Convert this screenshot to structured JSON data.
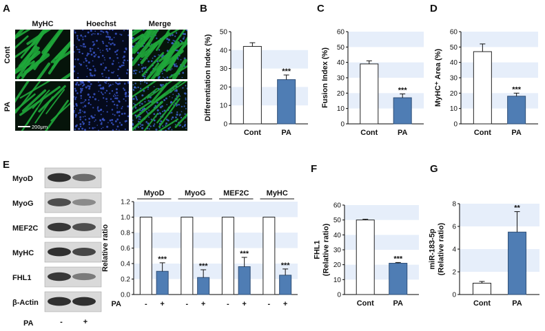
{
  "panel_letters": [
    "A",
    "B",
    "C",
    "D",
    "E",
    "F",
    "G"
  ],
  "micrographs": {
    "columns": [
      "MyHC",
      "Hoechst",
      "Merge"
    ],
    "rows": [
      "Cont",
      "PA"
    ],
    "scale_bar": "200μm",
    "tile_colors": {
      "myhc": "#1fa83a",
      "hoechst": "#1a2a6e",
      "background": "#06140a"
    }
  },
  "western_blot": {
    "bands": [
      "MyoD",
      "MyoG",
      "MEF2C",
      "MyHC",
      "FHL1",
      "β-Actin"
    ],
    "lanes": [
      "-",
      "+"
    ],
    "treatment_label": "PA"
  },
  "colors": {
    "control_bar": "#ffffff",
    "pa_bar": "#4f7db4",
    "band_shade": "#e6eefa"
  },
  "chart_data": [
    {
      "id": "B",
      "type": "bar",
      "title": "",
      "xlabel": "",
      "ylabel": "Differentiation Index (%)",
      "categories": [
        "Cont",
        "PA"
      ],
      "values": [
        42,
        24
      ],
      "errors": [
        2,
        2.5
      ],
      "ylim": [
        0,
        50
      ],
      "yticks": [
        0,
        10,
        20,
        30,
        40,
        50
      ],
      "annotations": [
        "",
        "***"
      ],
      "grid": "alternating bands"
    },
    {
      "id": "C",
      "type": "bar",
      "title": "",
      "xlabel": "",
      "ylabel": "Fusion Index (%)",
      "categories": [
        "Cont",
        "PA"
      ],
      "values": [
        39,
        17
      ],
      "errors": [
        2,
        2.5
      ],
      "ylim": [
        0,
        60
      ],
      "yticks": [
        0,
        10,
        20,
        30,
        40,
        50,
        60
      ],
      "annotations": [
        "",
        "***"
      ],
      "grid": "alternating bands"
    },
    {
      "id": "D",
      "type": "bar",
      "title": "",
      "xlabel": "",
      "ylabel": "MyHC⁺ Area (%)",
      "categories": [
        "Cont",
        "PA"
      ],
      "values": [
        47,
        18
      ],
      "errors": [
        5,
        2
      ],
      "ylim": [
        0,
        60
      ],
      "yticks": [
        0,
        10,
        20,
        30,
        40,
        50,
        60
      ],
      "annotations": [
        "",
        "***"
      ],
      "grid": "alternating bands"
    },
    {
      "id": "E",
      "type": "bar",
      "title": "",
      "xlabel": "PA",
      "ylabel": "Relative ratio",
      "groups": [
        "MyoD",
        "MyoG",
        "MEF2C",
        "MyHC"
      ],
      "categories": [
        "-",
        "+"
      ],
      "values": [
        [
          1.0,
          0.3
        ],
        [
          1.0,
          0.22
        ],
        [
          1.0,
          0.36
        ],
        [
          1.0,
          0.25
        ]
      ],
      "errors": [
        [
          0,
          0.11
        ],
        [
          0,
          0.1
        ],
        [
          0,
          0.12
        ],
        [
          0,
          0.08
        ]
      ],
      "ylim": [
        0,
        1.2
      ],
      "yticks": [
        "0.0",
        "0.2",
        "0.4",
        "0.6",
        "0.8",
        "1.0",
        "1.2"
      ],
      "annotations": [
        "",
        "***"
      ],
      "grid": "alternating bands"
    },
    {
      "id": "F",
      "type": "bar",
      "title": "",
      "xlabel": "",
      "ylabel": "FHL1\n(Relative ratio)",
      "categories": [
        "Cont",
        "PA"
      ],
      "values": [
        50,
        21
      ],
      "errors": [
        0.5,
        0.5
      ],
      "ylim": [
        0,
        60
      ],
      "yticks": [
        0,
        10,
        20,
        30,
        40,
        50,
        60
      ],
      "annotations": [
        "",
        "***"
      ],
      "grid": "alternating bands"
    },
    {
      "id": "G",
      "type": "bar",
      "title": "",
      "xlabel": "",
      "ylabel": "miR-183-5p\n(Relative ratio)",
      "categories": [
        "Cont",
        "PA"
      ],
      "values": [
        1.0,
        5.5
      ],
      "errors": [
        0.15,
        1.8
      ],
      "ylim": [
        0,
        8
      ],
      "yticks": [
        0,
        2,
        4,
        6,
        8
      ],
      "annotations": [
        "",
        "**"
      ],
      "grid": "alternating bands"
    }
  ]
}
